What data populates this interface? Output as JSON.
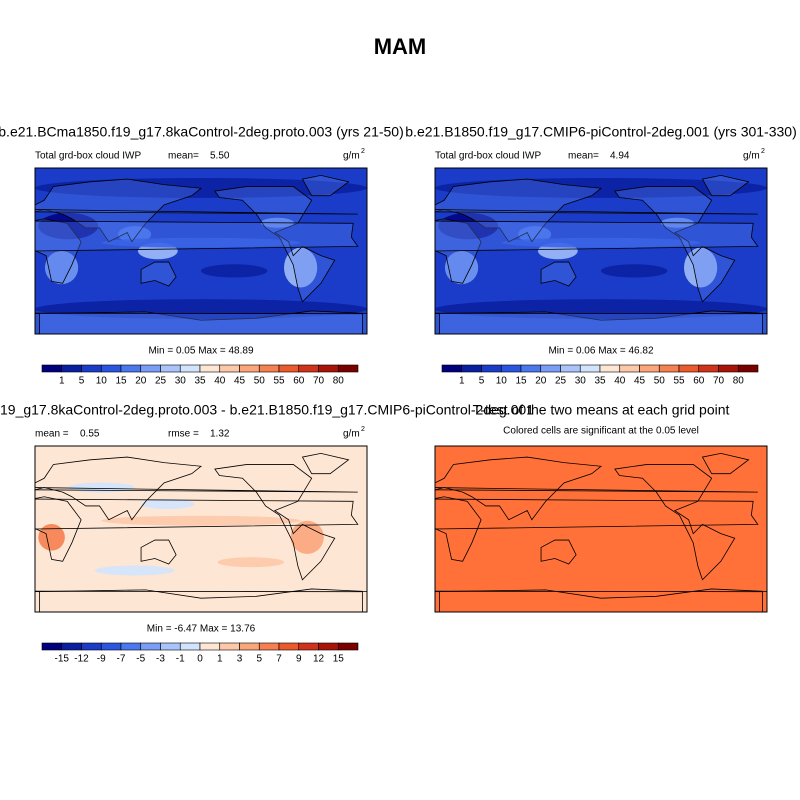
{
  "title": "MAM",
  "panels": [
    {
      "title": "b.e21.BCma1850.f19_g17.8kaControl-2deg.proto.003 (yrs 21-50)",
      "left_label": "Total grd-box cloud IWP",
      "center_label": "mean=",
      "center_value": "5.50",
      "units": "g/m",
      "units_sup": "2",
      "stats": "Min =  0.05 Max = 48.89",
      "colorbar": {
        "labels": [
          "1",
          "5",
          "10",
          "15",
          "20",
          "25",
          "30",
          "35",
          "40",
          "45",
          "50",
          "55",
          "60",
          "70",
          "80"
        ]
      }
    },
    {
      "title": "b.e21.B1850.f19_g17.CMIP6-piControl-2deg.001 (yrs 301-330)",
      "left_label": "Total grd-box cloud IWP",
      "center_label": "mean=",
      "center_value": "4.94",
      "units": "g/m",
      "units_sup": "2",
      "stats": "Min =  0.06 Max = 46.82",
      "colorbar": {
        "labels": [
          "1",
          "5",
          "10",
          "15",
          "20",
          "25",
          "30",
          "35",
          "40",
          "45",
          "50",
          "55",
          "60",
          "70",
          "80"
        ]
      }
    },
    {
      "title": "19_g17.8kaControl-2deg.proto.003 - b.e21.B1850.f19_g17.CMIP6-piControl-2deg.001",
      "left_label": "mean =",
      "left_value": "0.55",
      "center_label": "rmse =",
      "center_value": "1.32",
      "units": "g/m",
      "units_sup": "2",
      "stats": "Min =  -6.47 Max =  13.76",
      "colorbar": {
        "labels": [
          "-15",
          "-12",
          "-9",
          "-7",
          "-5",
          "-3",
          "-1",
          "0",
          "1",
          "3",
          "5",
          "7",
          "9",
          "12",
          "15"
        ]
      }
    },
    {
      "title": "T-test of the two means at each grid point",
      "subtitle": "Colored cells are significant at the 0.05 level"
    }
  ],
  "colors": [
    "#00007f",
    "#0a1fa0",
    "#1a3cc8",
    "#2a55e0",
    "#4a78ee",
    "#7a9ef5",
    "#a8c4fa",
    "#d2e4fd",
    "#fee6d4",
    "#fdc8a8",
    "#fba57c",
    "#f6804f",
    "#ec5a2c",
    "#d0321a",
    "#a81508",
    "#7a0000"
  ]
}
